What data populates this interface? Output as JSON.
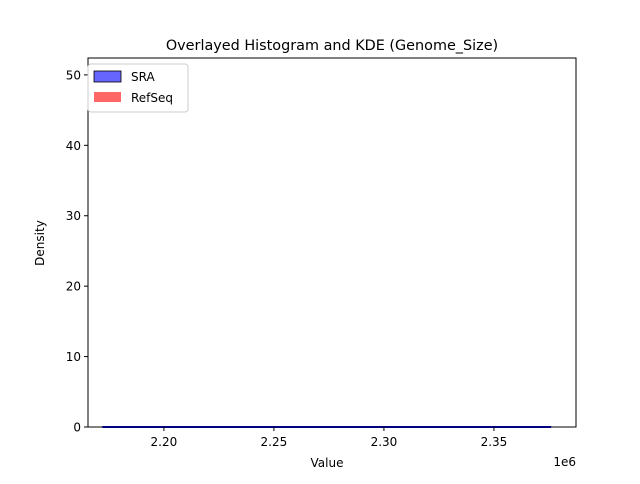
{
  "chart_data": {
    "type": "histogram+kde",
    "title": "Overlayed Histogram and KDE (Genome_Size)",
    "xlabel": "Value",
    "ylabel": "Density",
    "x_offset_label": "1e6",
    "xlim": [
      2165500,
      2387300
    ],
    "ylim": [
      0,
      52.4
    ],
    "xticks": [
      2200000,
      2250000,
      2300000,
      2350000
    ],
    "xtick_labels": [
      "2.20",
      "2.25",
      "2.30",
      "2.35"
    ],
    "yticks": [
      0,
      10,
      20,
      30,
      40,
      50
    ],
    "ytick_labels": [
      "0",
      "10",
      "20",
      "30",
      "40",
      "50"
    ],
    "grid": false,
    "legend_placement": "upper-left",
    "series": [
      {
        "name": "SRA",
        "color": "#0000ff",
        "fill": "#6666ff",
        "edge": "#000000",
        "kde": {
          "x": [
            2172000,
            2376000
          ],
          "y": [
            0,
            0
          ]
        }
      },
      {
        "name": "RefSeq",
        "color": "#ff0000",
        "fill": "#ff6666",
        "edge": "none",
        "kde": {
          "x": [],
          "y": []
        }
      }
    ]
  }
}
